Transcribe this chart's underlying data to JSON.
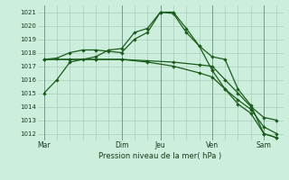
{
  "xlabel": "Pression niveau de la mer( hPa )",
  "background_color": "#cceedd",
  "grid_color": "#aaccbb",
  "line_color": "#1a5c1a",
  "ylim": [
    1011.5,
    1021.5
  ],
  "yticks": [
    1012,
    1013,
    1014,
    1015,
    1016,
    1017,
    1018,
    1019,
    1020,
    1021
  ],
  "day_labels": [
    "Mar",
    "Dim",
    "Jeu",
    "Ven",
    "Sam"
  ],
  "day_positions": [
    0,
    6,
    9,
    13,
    17
  ],
  "xlim": [
    -0.5,
    18.5
  ],
  "lines": [
    {
      "x": [
        0,
        1,
        2,
        3,
        4,
        5,
        6,
        7,
        8,
        9,
        10,
        11,
        12,
        13
      ],
      "y": [
        1015.0,
        1016.0,
        1017.3,
        1017.5,
        1017.7,
        1018.2,
        1018.3,
        1019.5,
        1019.8,
        1021.0,
        1021.0,
        1019.8,
        1018.5,
        1016.7
      ]
    },
    {
      "x": [
        0,
        2,
        4,
        6,
        8,
        10,
        12,
        13,
        14,
        15,
        16,
        17,
        18
      ],
      "y": [
        1017.5,
        1017.5,
        1017.5,
        1017.5,
        1017.4,
        1017.3,
        1017.1,
        1017.0,
        1016.0,
        1015.0,
        1014.0,
        1013.2,
        1013.0
      ]
    },
    {
      "x": [
        0,
        2,
        4,
        6,
        8,
        10,
        12,
        13,
        14,
        15,
        16,
        17,
        18
      ],
      "y": [
        1017.5,
        1017.5,
        1017.5,
        1017.5,
        1017.3,
        1017.0,
        1016.5,
        1016.2,
        1015.3,
        1014.5,
        1013.8,
        1012.5,
        1012.0
      ]
    },
    {
      "x": [
        0,
        1,
        2,
        3,
        4,
        5,
        6,
        7,
        8,
        9,
        10,
        11,
        12,
        13,
        14,
        15,
        16,
        17,
        18
      ],
      "y": [
        1017.5,
        1017.6,
        1018.0,
        1018.2,
        1018.2,
        1018.1,
        1018.0,
        1019.0,
        1019.5,
        1021.0,
        1020.9,
        1019.5,
        1018.5,
        1017.7,
        1017.5,
        1015.3,
        1014.1,
        1012.0,
        1011.7
      ]
    },
    {
      "x": [
        13,
        14,
        15,
        16,
        17,
        18
      ],
      "y": [
        1016.7,
        1015.3,
        1014.2,
        1013.5,
        1012.0,
        1011.7
      ]
    }
  ]
}
